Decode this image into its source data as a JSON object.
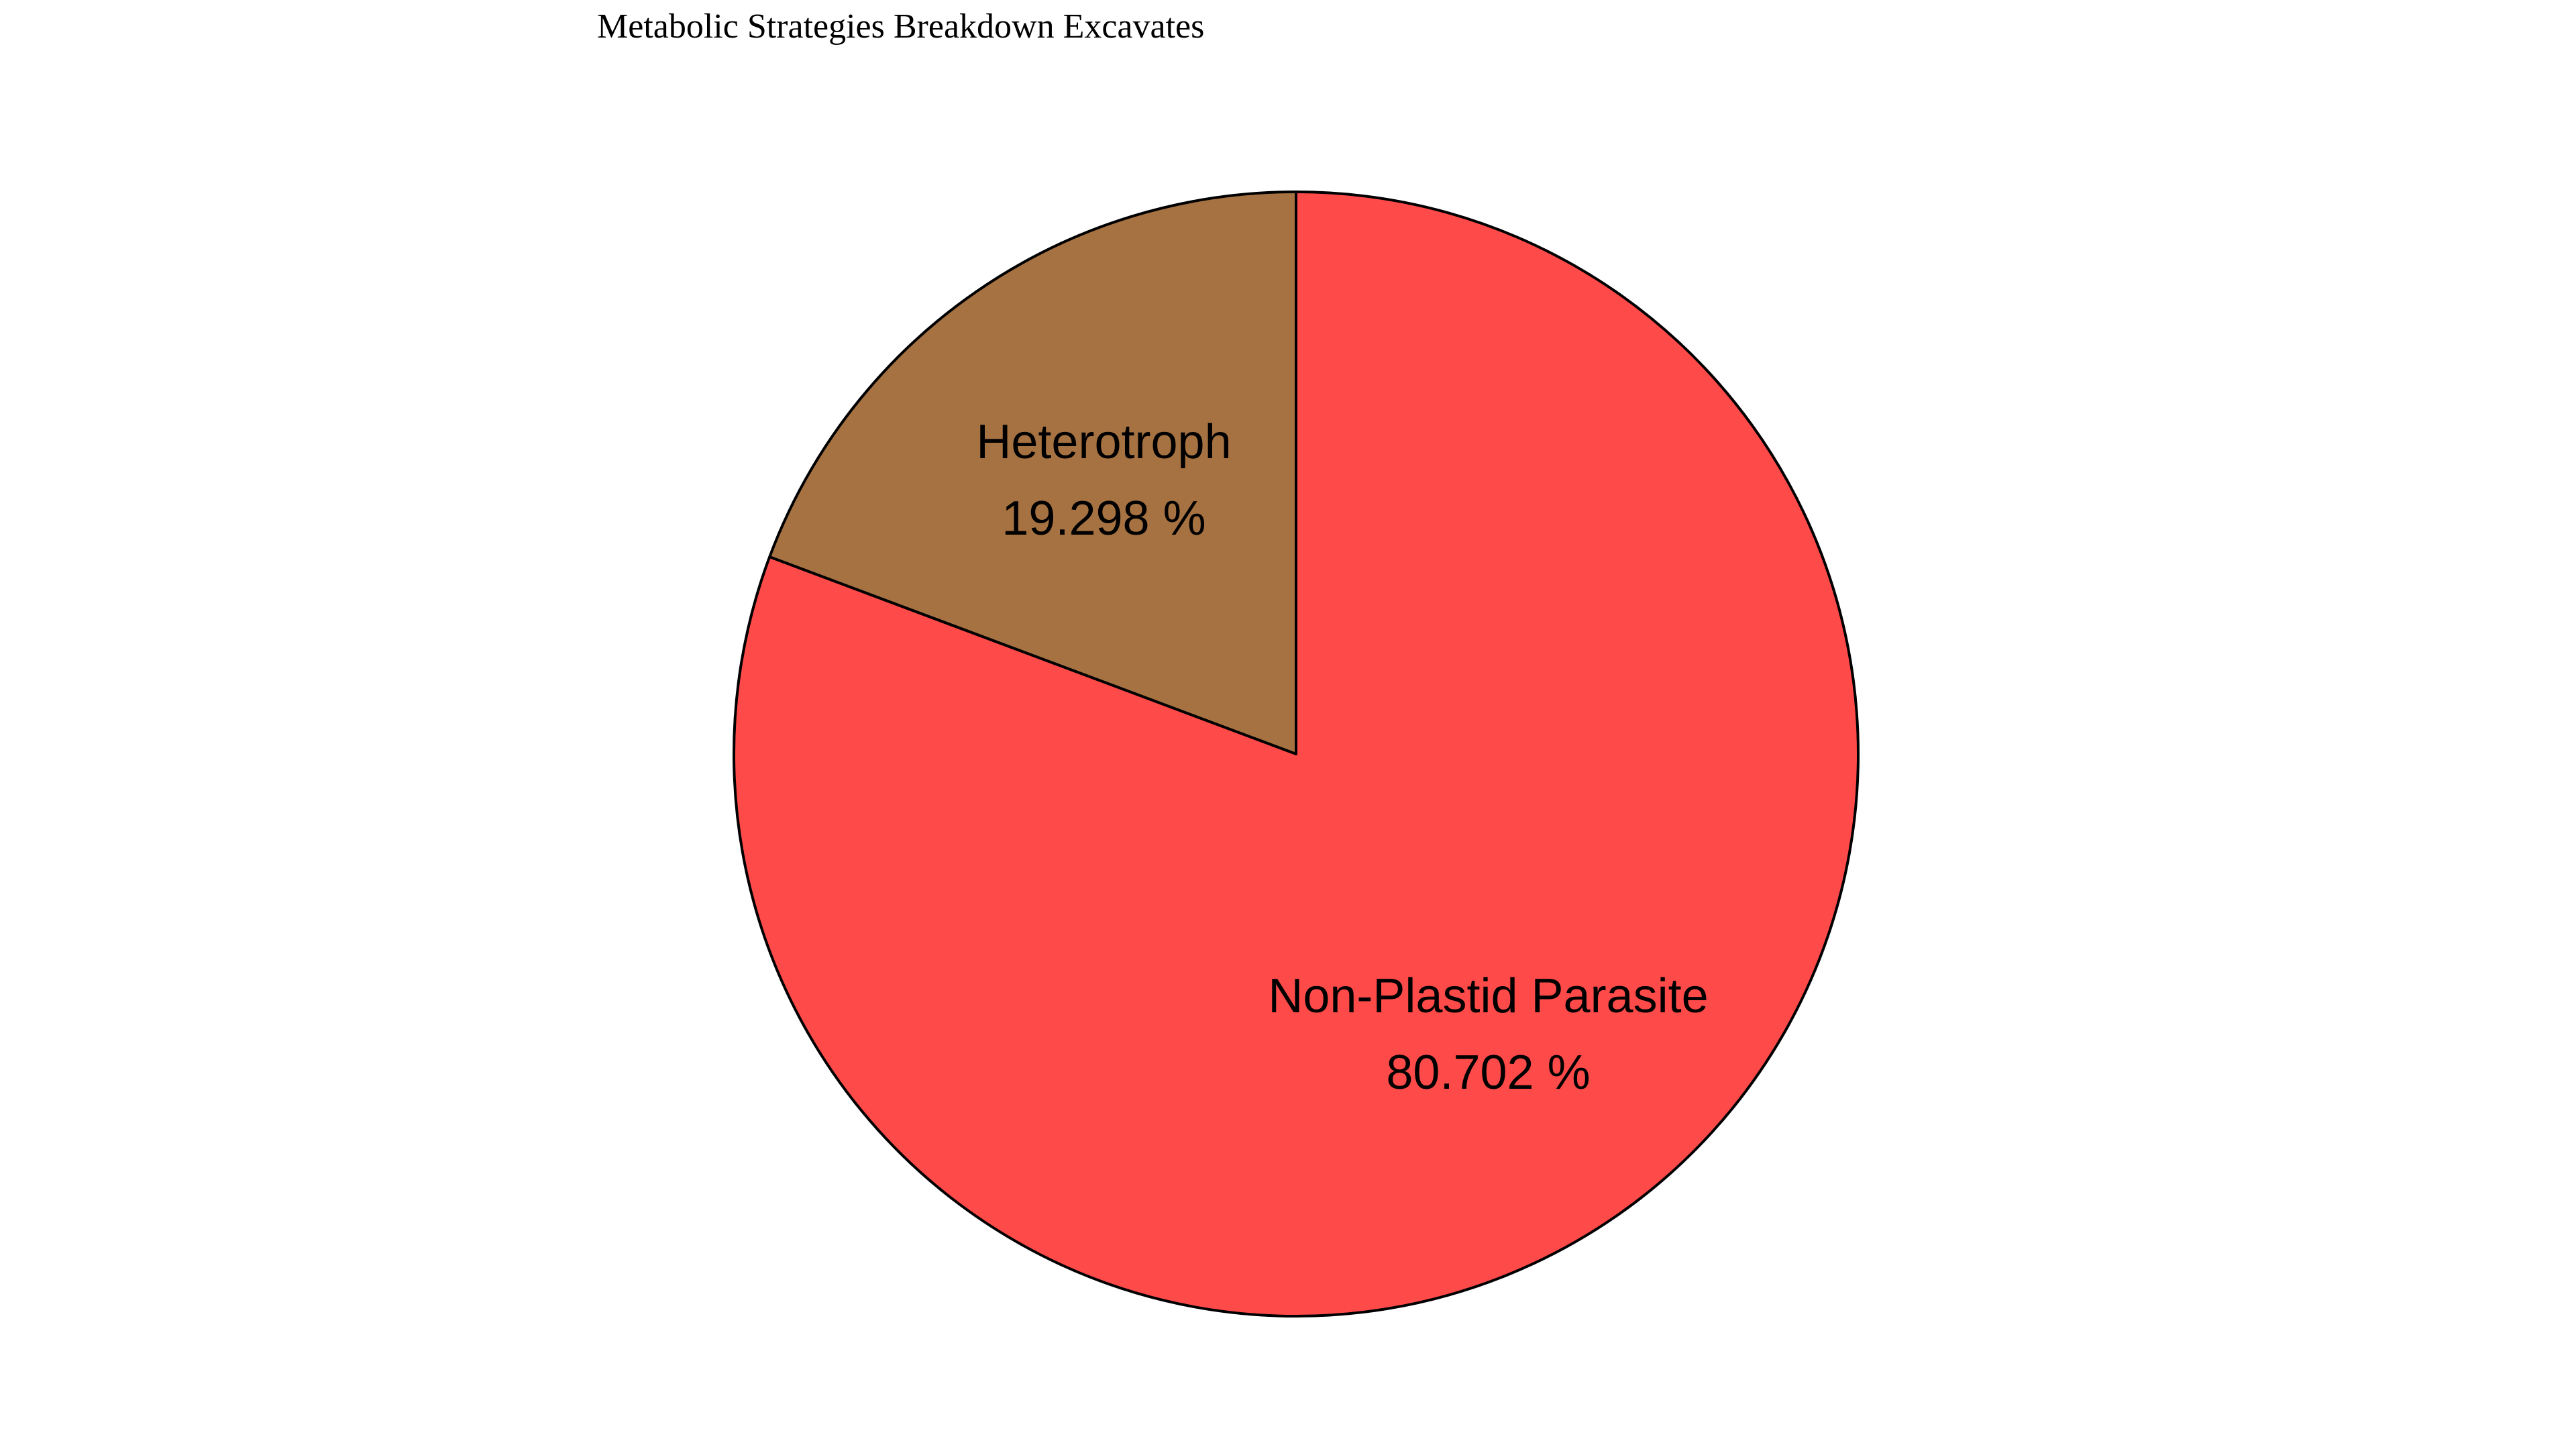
{
  "chart_data": {
    "type": "pie",
    "title": "Metabolic Strategies Breakdown Excavates",
    "slices": [
      {
        "label": "Heterotroph",
        "value": 19.298,
        "value_text": "19.298 %",
        "color": "#A67242"
      },
      {
        "label": "Non-Plastid Parasite",
        "value": 80.702,
        "value_text": "80.702 %",
        "color": "#FF4A4A"
      }
    ],
    "start_angle_deg": 90,
    "direction": "counterclockwise",
    "edge_color": "#000000",
    "legend": "none"
  }
}
